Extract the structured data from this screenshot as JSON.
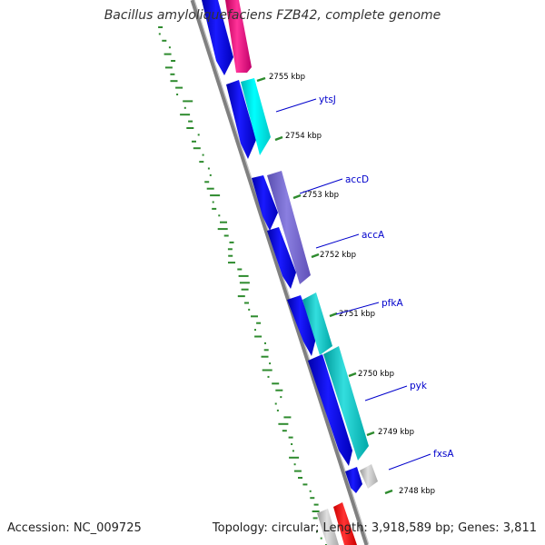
{
  "title": "Bacillus amyloliquefaciens FZB42, complete genome",
  "footer": {
    "accession": "Accession: NC_009725",
    "summary": "Topology: circular; Length: 3,918,589 bp; Genes: 3,811"
  },
  "colors": {
    "backbone": "#808080",
    "gc_dots": "#2e8b2e",
    "reverse_genes": "#0000ee",
    "label_color": "#0000cc"
  },
  "scale_ticks": [
    "2755 kbp",
    "2754 kbp",
    "2753 kbp",
    "2752 kbp",
    "2751 kbp",
    "2750 kbp",
    "2749 kbp",
    "2748 kbp"
  ],
  "gene_labels": [
    "ytsJ",
    "accD",
    "accA",
    "pfkA",
    "pyk",
    "fxsA"
  ]
}
